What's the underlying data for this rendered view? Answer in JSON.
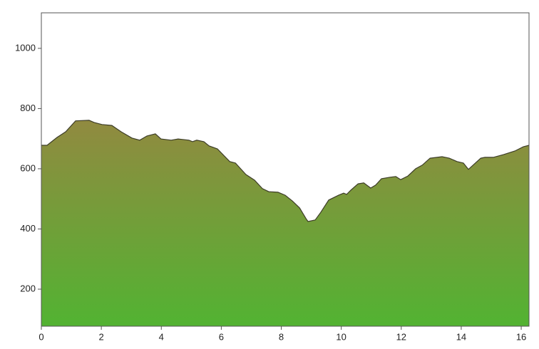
{
  "chart_data": {
    "type": "area",
    "x": [
      0,
      0.19,
      0.52,
      0.81,
      1.14,
      1.59,
      1.76,
      2.02,
      2.35,
      2.66,
      3.02,
      3.28,
      3.52,
      3.8,
      3.99,
      4.33,
      4.56,
      4.92,
      5.04,
      5.18,
      5.42,
      5.59,
      5.87,
      6.28,
      6.47,
      6.82,
      7.11,
      7.37,
      7.58,
      7.89,
      8.13,
      8.37,
      8.61,
      8.84,
      8.89,
      9.13,
      9.32,
      9.58,
      9.91,
      10.08,
      10.18,
      10.32,
      10.56,
      10.75,
      10.98,
      11.15,
      11.34,
      11.63,
      11.82,
      11.98,
      12.22,
      12.48,
      12.7,
      12.96,
      13.36,
      13.6,
      13.86,
      14.07,
      14.24,
      14.65,
      14.79,
      15.07,
      15.41,
      15.79,
      16.07,
      16.26
    ],
    "values": [
      678,
      678,
      704,
      723,
      759,
      761,
      754,
      747,
      744,
      723,
      702,
      695,
      709,
      716,
      699,
      695,
      699,
      695,
      690,
      695,
      690,
      676,
      666,
      624,
      619,
      581,
      562,
      534,
      524,
      522,
      512,
      493,
      470,
      432,
      425,
      430,
      456,
      496,
      512,
      519,
      515,
      529,
      550,
      553,
      536,
      546,
      567,
      572,
      574,
      564,
      576,
      600,
      612,
      635,
      640,
      635,
      624,
      619,
      598,
      635,
      638,
      638,
      647,
      659,
      673,
      678
    ],
    "xlim": [
      0,
      16.26
    ],
    "ylim": [
      77,
      1118
    ],
    "xticks": [
      0,
      2,
      4,
      6,
      8,
      10,
      12,
      14,
      16
    ],
    "yticks": [
      200,
      400,
      600,
      800,
      1000
    ],
    "grid": false,
    "fill_gradient": [
      "#918a40",
      "#52b332"
    ],
    "line_color": "#3d3d28"
  }
}
